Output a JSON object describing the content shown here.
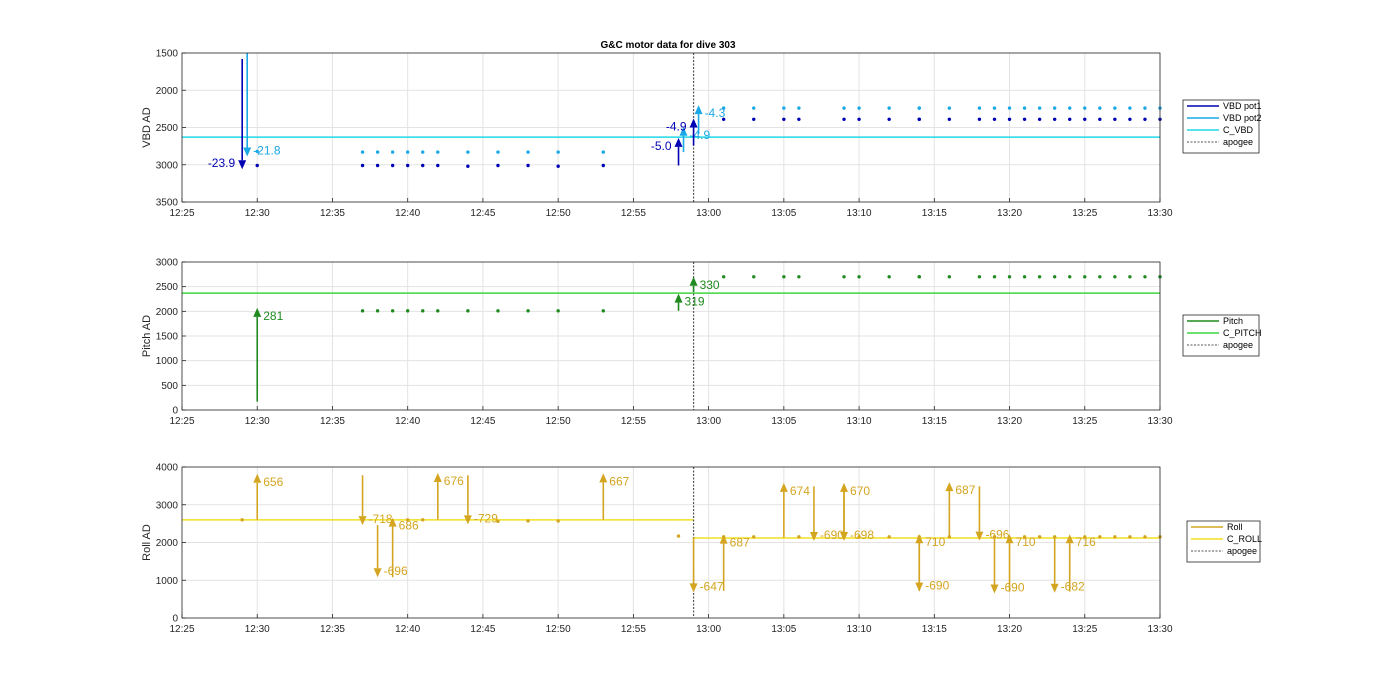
{
  "chart_data": [
    {
      "type": "line",
      "title": "G&C motor data for dive 303",
      "ylabel": "VBD AD",
      "y_reversed": true,
      "xlim": [
        "12:25",
        "13:30"
      ],
      "ylim": [
        1500,
        3500
      ],
      "xticks": [
        "12:25",
        "12:30",
        "12:35",
        "12:40",
        "12:45",
        "12:50",
        "12:55",
        "13:00",
        "13:05",
        "13:10",
        "13:15",
        "13:20",
        "13:25",
        "13:30"
      ],
      "yticks": [
        "1500",
        "2000",
        "2500",
        "3000",
        "3500"
      ],
      "grid": true,
      "legend_position": "right",
      "legend": [
        "VBD pot1",
        "VBD pot2",
        "C_VBD",
        "apogee"
      ],
      "colors": {
        "pot1": "#0000b4",
        "pot2": "#1aa8e6",
        "ref": "#20d8e8",
        "apogee": "#555555"
      },
      "apogee_x": "12:59",
      "reference": {
        "name": "C_VBD",
        "value": 2630
      },
      "series": [
        {
          "name": "VBD pot1",
          "x": [
            "12:30",
            "12:37",
            "12:38",
            "12:39",
            "12:40",
            "12:41",
            "12:42",
            "12:44",
            "12:46",
            "12:48",
            "12:50",
            "12:53",
            "13:01",
            "13:03",
            "13:05",
            "13:06",
            "13:09",
            "13:10",
            "13:12",
            "13:14",
            "13:14",
            "13:16",
            "13:18",
            "13:19",
            "13:20",
            "13:21",
            "13:22",
            "13:23",
            "13:24",
            "13:25",
            "13:26",
            "13:27",
            "13:28",
            "13:29",
            "13:30"
          ],
          "values": [
            3010,
            3010,
            3010,
            3010,
            3010,
            3010,
            3010,
            3020,
            3010,
            3010,
            3020,
            3010,
            2390,
            2390,
            2390,
            2390,
            2390,
            2390,
            2390,
            2390,
            2390,
            2390,
            2390,
            2390,
            2390,
            2390,
            2390,
            2390,
            2390,
            2390,
            2390,
            2390,
            2390,
            2390,
            2390
          ]
        },
        {
          "name": "VBD pot2",
          "x": [
            "12:30",
            "12:37",
            "12:38",
            "12:39",
            "12:40",
            "12:41",
            "12:42",
            "12:44",
            "12:46",
            "12:48",
            "12:50",
            "12:53",
            "13:01",
            "13:03",
            "13:05",
            "13:06",
            "13:09",
            "13:10",
            "13:12",
            "13:14",
            "13:14",
            "13:16",
            "13:18",
            "13:19",
            "13:20",
            "13:21",
            "13:22",
            "13:23",
            "13:24",
            "13:25",
            "13:26",
            "13:27",
            "13:28",
            "13:29",
            "13:30"
          ],
          "values": [
            2820,
            2830,
            2830,
            2830,
            2830,
            2830,
            2830,
            2830,
            2830,
            2830,
            2830,
            2830,
            2240,
            2240,
            2240,
            2240,
            2240,
            2240,
            2240,
            2240,
            2240,
            2240,
            2240,
            2240,
            2240,
            2240,
            2240,
            2240,
            2240,
            2240,
            2240,
            2240,
            2240,
            2240,
            2240
          ]
        }
      ],
      "arrows": [
        {
          "x": "12:29",
          "from": 1580,
          "to": 3060,
          "color": "pot1",
          "label": "-23.9",
          "label_side": "left"
        },
        {
          "x": "12:29",
          "from": 1500,
          "to": 2890,
          "color": "pot2",
          "label": "-21.8",
          "label_side": "right"
        },
        {
          "x": "12:58",
          "from": 3010,
          "to": 2640,
          "color": "pot1",
          "label": "-5.0",
          "label_side": "left"
        },
        {
          "x": "12:58",
          "from": 2830,
          "to": 2490,
          "color": "pot2",
          "label": "-4.9",
          "label_side": "right"
        },
        {
          "x": "12:59",
          "from": 2740,
          "to": 2380,
          "color": "pot1",
          "label": "-4.9",
          "label_side": "left"
        },
        {
          "x": "12:59",
          "from": 2590,
          "to": 2200,
          "color": "pot2",
          "label": "-4.3",
          "label_side": "right"
        }
      ]
    },
    {
      "type": "line",
      "ylabel": "Pitch AD",
      "xlim": [
        "12:25",
        "13:30"
      ],
      "ylim": [
        0,
        3000
      ],
      "xticks": [
        "12:25",
        "12:30",
        "12:35",
        "12:40",
        "12:45",
        "12:50",
        "12:55",
        "13:00",
        "13:05",
        "13:10",
        "13:15",
        "13:20",
        "13:25",
        "13:30"
      ],
      "yticks": [
        "0",
        "500",
        "1000",
        "1500",
        "2000",
        "2500",
        "3000"
      ],
      "grid": true,
      "legend_position": "right",
      "legend": [
        "Pitch",
        "C_PITCH",
        "apogee"
      ],
      "colors": {
        "main": "#1f8a1f",
        "ref": "#3ed63e",
        "apogee": "#555555"
      },
      "apogee_x": "12:59",
      "reference": {
        "name": "C_PITCH",
        "value": 2370
      },
      "series": [
        {
          "name": "Pitch",
          "x": [
            "12:37",
            "12:38",
            "12:39",
            "12:40",
            "12:41",
            "12:42",
            "12:44",
            "12:46",
            "12:48",
            "12:50",
            "12:53",
            "13:01",
            "13:03",
            "13:05",
            "13:06",
            "13:09",
            "13:10",
            "13:12",
            "13:14",
            "13:14",
            "13:16",
            "13:18",
            "13:19",
            "13:20",
            "13:21",
            "13:22",
            "13:23",
            "13:24",
            "13:25",
            "13:26",
            "13:27",
            "13:28",
            "13:29",
            "13:30"
          ],
          "values": [
            2010,
            2010,
            2010,
            2010,
            2010,
            2010,
            2010,
            2010,
            2010,
            2010,
            2010,
            2700,
            2700,
            2700,
            2700,
            2700,
            2700,
            2700,
            2700,
            2700,
            2700,
            2700,
            2700,
            2700,
            2700,
            2700,
            2700,
            2700,
            2700,
            2700,
            2700,
            2700,
            2700,
            2700
          ]
        }
      ],
      "arrows": [
        {
          "x": "12:30",
          "from": 170,
          "to": 2070,
          "color": "main",
          "label": "281",
          "label_side": "right"
        },
        {
          "x": "12:58",
          "from": 2010,
          "to": 2360,
          "color": "main",
          "label": "319",
          "label_side": "right"
        },
        {
          "x": "12:59",
          "from": 2390,
          "to": 2700,
          "color": "main",
          "label": "330",
          "label_side": "right"
        }
      ]
    },
    {
      "type": "line",
      "ylabel": "Roll AD",
      "xlim": [
        "12:25",
        "13:30"
      ],
      "ylim": [
        0,
        4000
      ],
      "xticks": [
        "12:25",
        "12:30",
        "12:35",
        "12:40",
        "12:45",
        "12:50",
        "12:55",
        "13:00",
        "13:05",
        "13:10",
        "13:15",
        "13:20",
        "13:25",
        "13:30"
      ],
      "yticks": [
        "0",
        "1000",
        "2000",
        "3000",
        "4000"
      ],
      "grid": true,
      "legend_position": "right",
      "legend": [
        "Roll",
        "C_ROLL",
        "apogee"
      ],
      "colors": {
        "main": "#d4a520",
        "ref": "#f0e020",
        "apogee": "#555555"
      },
      "apogee_x": "12:59",
      "reference_segments": [
        {
          "name": "C_ROLL",
          "x": [
            "12:25",
            "12:59"
          ],
          "value": 2600
        },
        {
          "name": "C_ROLL",
          "x": [
            "12:59",
            "13:30"
          ],
          "value": 2120
        }
      ],
      "series": [
        {
          "name": "Roll",
          "x": [
            "12:29",
            "12:40",
            "12:41",
            "12:46",
            "12:48",
            "12:50",
            "12:58",
            "13:01",
            "13:03",
            "13:06",
            "13:10",
            "13:12",
            "13:14",
            "13:16",
            "13:18",
            "13:19",
            "13:21",
            "13:22",
            "13:23",
            "13:25",
            "13:26",
            "13:27",
            "13:28",
            "13:29",
            "13:30"
          ],
          "values": [
            2600,
            2600,
            2600,
            2560,
            2570,
            2570,
            2170,
            2150,
            2150,
            2150,
            2150,
            2150,
            2150,
            2150,
            2150,
            2150,
            2150,
            2150,
            2150,
            2150,
            2150,
            2150,
            2150,
            2150,
            2150
          ]
        }
      ],
      "arrows": [
        {
          "x": "12:30",
          "from": 2600,
          "to": 3820,
          "color": "main",
          "label": "656",
          "label_side": "right"
        },
        {
          "x": "12:37",
          "from": 3780,
          "to": 2460,
          "color": "main",
          "label": "-718",
          "label_side": "right"
        },
        {
          "x": "12:38",
          "from": 2460,
          "to": 1080,
          "color": "main",
          "label": "-696",
          "label_side": "right"
        },
        {
          "x": "12:39",
          "from": 1080,
          "to": 2660,
          "color": "main",
          "label": "686",
          "label_side": "right"
        },
        {
          "x": "12:42",
          "from": 2600,
          "to": 3840,
          "color": "main",
          "label": "676",
          "label_side": "right"
        },
        {
          "x": "12:44",
          "from": 3780,
          "to": 2480,
          "color": "main",
          "label": "-729",
          "label_side": "right"
        },
        {
          "x": "12:53",
          "from": 2600,
          "to": 3830,
          "color": "main",
          "label": "667",
          "label_side": "right"
        },
        {
          "x": "12:59",
          "from": 2130,
          "to": 680,
          "color": "main",
          "label": "-647",
          "label_side": "right"
        },
        {
          "x": "13:01",
          "from": 720,
          "to": 2210,
          "color": "main",
          "label": "687",
          "label_side": "right"
        },
        {
          "x": "13:05",
          "from": 2130,
          "to": 3580,
          "color": "main",
          "label": "674",
          "label_side": "right"
        },
        {
          "x": "13:07",
          "from": 3490,
          "to": 2040,
          "color": "main",
          "label": "-690",
          "label_side": "right"
        },
        {
          "x": "13:09",
          "from": 2130,
          "to": 3580,
          "color": "main",
          "label": "670",
          "label_side": "right"
        },
        {
          "x": "13:09",
          "from": 3490,
          "to": 2040,
          "color": "main",
          "label": "-698",
          "label_side": "right"
        },
        {
          "x": "13:14",
          "from": 2130,
          "to": 700,
          "color": "main",
          "label": "-690",
          "label_side": "right"
        },
        {
          "x": "13:14",
          "from": 720,
          "to": 2220,
          "color": "main",
          "label": "710",
          "label_side": "right"
        },
        {
          "x": "13:16",
          "from": 2130,
          "to": 3600,
          "color": "main",
          "label": "687",
          "label_side": "right"
        },
        {
          "x": "13:18",
          "from": 3490,
          "to": 2050,
          "color": "main",
          "label": "-696",
          "label_side": "right"
        },
        {
          "x": "13:19",
          "from": 2130,
          "to": 650,
          "color": "main",
          "label": "-690",
          "label_side": "right"
        },
        {
          "x": "13:20",
          "from": 700,
          "to": 2220,
          "color": "main",
          "label": "710",
          "label_side": "right"
        },
        {
          "x": "13:23",
          "from": 2130,
          "to": 670,
          "color": "main",
          "label": "-682",
          "label_side": "right"
        },
        {
          "x": "13:24",
          "from": 700,
          "to": 2220,
          "color": "main",
          "label": "716",
          "label_side": "right"
        }
      ]
    }
  ]
}
